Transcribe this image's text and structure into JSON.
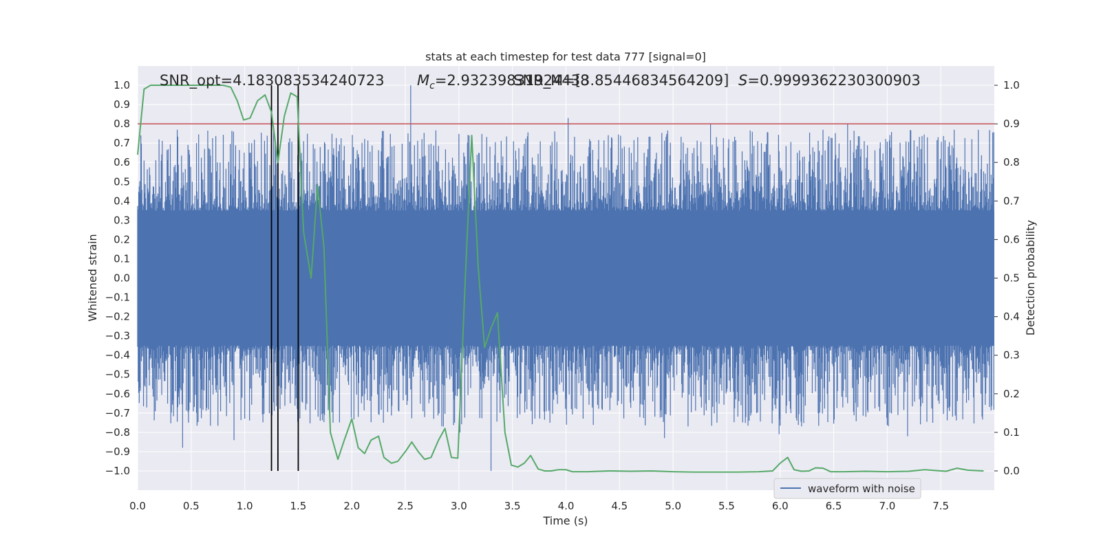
{
  "chart_data": {
    "type": "line",
    "title": "stats at each timestep for test data 777 [signal=0]",
    "xlabel": "Time (s)",
    "ylabel": "Whitened strain",
    "ylabel_right": "Detection probability",
    "xlim": [
      0,
      8
    ],
    "ylim": [
      -1.1,
      1.1
    ],
    "ylim_right": [
      -0.05,
      1.05
    ],
    "x_ticks": [
      "0.0",
      "0.5",
      "1.0",
      "1.5",
      "2.0",
      "2.5",
      "3.0",
      "3.5",
      "4.0",
      "4.5",
      "5.0",
      "5.5",
      "6.0",
      "6.5",
      "7.0",
      "7.5"
    ],
    "y_ticks": [
      "1.0",
      "0.9",
      "0.8",
      "0.7",
      "0.6",
      "0.5",
      "0.4",
      "0.3",
      "0.2",
      "0.1",
      "0.0",
      "−0.1",
      "−0.2",
      "−0.3",
      "−0.4",
      "−0.5",
      "−0.6",
      "−0.7",
      "−0.8",
      "−0.9",
      "−1.0"
    ],
    "y_ticks_right": [
      "1.0",
      "0.9",
      "0.8",
      "0.7",
      "0.6",
      "0.5",
      "0.4",
      "0.3",
      "0.2",
      "0.1",
      "0.0"
    ],
    "grid": true,
    "legend_position": "lower-right",
    "annotations": {
      "snr_opt": "SNR_opt=4.183083534240723",
      "mc_prefix": "M",
      "mc_sub": "c",
      "mc_value": "=2.93239831924438",
      "snr_list": "SNR_M=[3.85446834564209]",
      "s_prefix": "S",
      "s_value": "=0.9999362230300903"
    },
    "threshold": {
      "value": 0.9,
      "axis": "right",
      "color": "#c44e52"
    },
    "vertical_markers": [
      1.25,
      1.31,
      1.5
    ],
    "series": [
      {
        "name": "waveform with noise",
        "axis": "left",
        "color": "#4c72b0",
        "kind": "noise",
        "envelope_core": 0.35,
        "peaks": [
          {
            "x": 2.55,
            "y": 1.0
          },
          {
            "x": 4.02,
            "y": 0.83
          },
          {
            "x": 5.35,
            "y": 0.8
          },
          {
            "x": 6.63,
            "y": 0.8
          },
          {
            "x": 0.42,
            "y": -0.88
          },
          {
            "x": 0.9,
            "y": -0.84
          },
          {
            "x": 3.3,
            "y": -1.0
          },
          {
            "x": 3.01,
            "y": -0.8
          },
          {
            "x": 4.92,
            "y": -0.83
          },
          {
            "x": 5.99,
            "y": -0.81
          },
          {
            "x": 7.19,
            "y": -0.82
          }
        ]
      },
      {
        "name": "",
        "axis": "right",
        "color": "#55a868",
        "kind": "line",
        "x": [
          0.0,
          0.06,
          0.12,
          0.2,
          0.3,
          0.5,
          0.7,
          0.8,
          0.87,
          0.93,
          0.99,
          1.05,
          1.12,
          1.19,
          1.25,
          1.31,
          1.37,
          1.43,
          1.49,
          1.55,
          1.62,
          1.68,
          1.74,
          1.8,
          1.87,
          1.93,
          2.0,
          2.06,
          2.12,
          2.18,
          2.25,
          2.3,
          2.37,
          2.43,
          2.5,
          2.56,
          2.62,
          2.68,
          2.74,
          2.81,
          2.87,
          2.93,
          2.99,
          3.06,
          3.12,
          3.18,
          3.24,
          3.3,
          3.36,
          3.43,
          3.49,
          3.55,
          3.61,
          3.67,
          3.74,
          3.8,
          3.86,
          3.93,
          4.0,
          4.06,
          4.2,
          4.4,
          4.6,
          4.8,
          5.0,
          5.2,
          5.4,
          5.6,
          5.8,
          5.93,
          6.0,
          6.07,
          6.13,
          6.2,
          6.27,
          6.33,
          6.4,
          6.47,
          6.6,
          6.8,
          7.0,
          7.2,
          7.35,
          7.55,
          7.65,
          7.75,
          7.9
        ],
        "y": [
          0.82,
          0.99,
          1.0,
          1.0,
          1.0,
          1.0,
          1.0,
          1.0,
          0.995,
          0.96,
          0.91,
          0.915,
          0.96,
          0.975,
          0.93,
          0.8,
          0.92,
          0.98,
          0.97,
          0.62,
          0.5,
          0.74,
          0.58,
          0.1,
          0.03,
          0.08,
          0.135,
          0.06,
          0.045,
          0.08,
          0.09,
          0.035,
          0.02,
          0.025,
          0.05,
          0.075,
          0.05,
          0.03,
          0.035,
          0.08,
          0.11,
          0.035,
          0.033,
          0.5,
          0.87,
          0.53,
          0.32,
          0.37,
          0.41,
          0.1,
          0.015,
          0.01,
          0.02,
          0.04,
          0.005,
          0.0,
          0.0,
          0.003,
          0.003,
          -0.002,
          -0.002,
          0.0,
          -0.001,
          0.0,
          -0.002,
          -0.003,
          -0.003,
          -0.003,
          -0.002,
          0.0,
          0.02,
          0.035,
          0.003,
          -0.001,
          0.0,
          0.008,
          0.007,
          -0.002,
          -0.002,
          -0.001,
          -0.002,
          -0.001,
          0.003,
          -0.001,
          0.007,
          0.002,
          0.0
        ]
      }
    ]
  },
  "legend": {
    "waveform_label": "waveform with noise"
  }
}
